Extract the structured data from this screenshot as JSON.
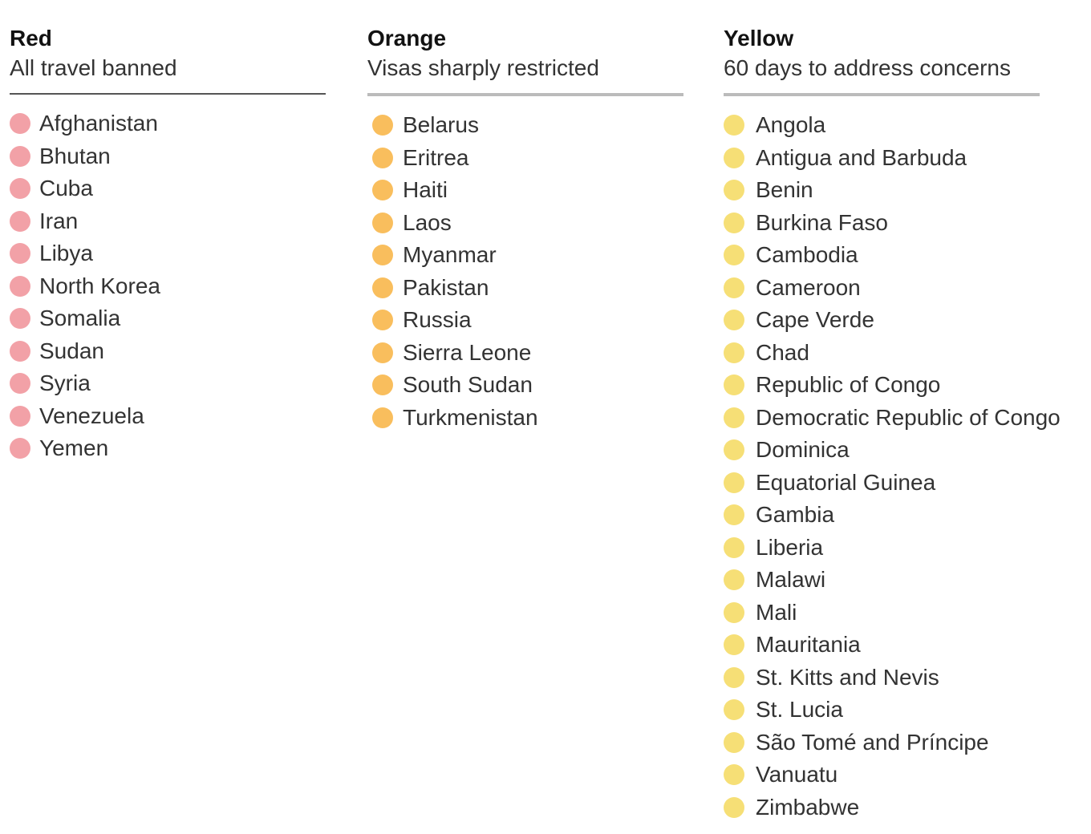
{
  "colors": {
    "red": "#f0949b",
    "orange": "#f8b547",
    "yellow": "#f5db63"
  },
  "groups": [
    {
      "title": "Red",
      "subtitle": "All travel banned",
      "dot_color": "#f0949b",
      "countries": [
        "Afghanistan",
        "Bhutan",
        "Cuba",
        "Iran",
        "Libya",
        "North Korea",
        "Somalia",
        "Sudan",
        "Syria",
        "Venezuela",
        "Yemen"
      ]
    },
    {
      "title": "Orange",
      "subtitle": "Visas sharply restricted",
      "dot_color": "#f8b547",
      "countries": [
        "Belarus",
        "Eritrea",
        "Haiti",
        "Laos",
        "Myanmar",
        "Pakistan",
        "Russia",
        "Sierra Leone",
        "South Sudan",
        "Turkmenistan"
      ]
    },
    {
      "title": "Yellow",
      "subtitle": "60 days to address concerns",
      "dot_color": "#f5db63",
      "countries": [
        "Angola",
        "Antigua and Barbuda",
        "Benin",
        "Burkina Faso",
        "Cambodia",
        "Cameroon",
        "Cape Verde",
        "Chad",
        "Republic of Congo",
        "Democratic Republic of Congo",
        "Dominica",
        "Equatorial Guinea",
        "Gambia",
        "Liberia",
        "Malawi",
        "Mali",
        "Mauritania",
        "St. Kitts and Nevis",
        "St. Lucia",
        "São Tomé and Príncipe",
        "Vanuatu",
        "Zimbabwe"
      ]
    }
  ]
}
